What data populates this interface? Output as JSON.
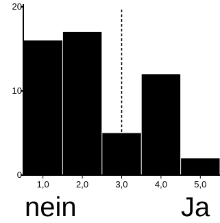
{
  "chart_data": {
    "type": "bar",
    "categories": [
      "1,0",
      "2,0",
      "3,0",
      "4,0",
      "5,0"
    ],
    "values": [
      16,
      17,
      5,
      12,
      2
    ],
    "xlim": [
      0.5,
      5.5
    ],
    "ylim": [
      0,
      20
    ],
    "yticks": [
      0,
      10,
      20
    ],
    "ytick_labels": [
      "0",
      "10",
      "20"
    ],
    "xtick_labels": [
      "1,0",
      "2,0",
      "3,0",
      "4,0",
      "5,0"
    ],
    "reference_line": {
      "x": 3.0,
      "style": "dashed"
    },
    "bar_color": "#000000",
    "grid": false,
    "bottom_labels": {
      "left": "nein",
      "right": "Ja"
    }
  }
}
